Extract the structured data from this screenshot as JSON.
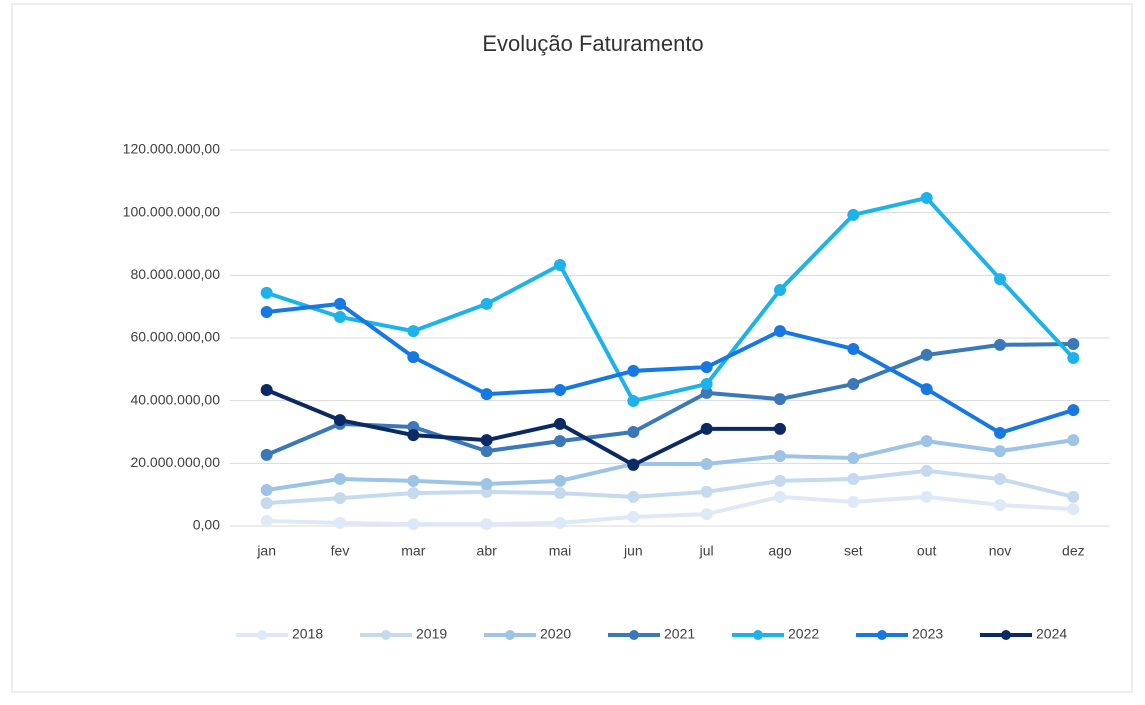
{
  "chart_data": {
    "type": "line",
    "title": "Evolução Faturamento",
    "categories": [
      "jan",
      "fev",
      "mar",
      "abr",
      "mai",
      "jun",
      "jul",
      "ago",
      "set",
      "out",
      "nov",
      "dez"
    ],
    "series": [
      {
        "name": "2018",
        "color": "#dde9f7",
        "values": [
          1600000,
          1000000,
          600000,
          600000,
          1000000,
          2900000,
          3800000,
          9300000,
          7700000,
          9300000,
          6700000,
          5400000
        ]
      },
      {
        "name": "2019",
        "color": "#c5d9ef",
        "values": [
          7300000,
          8900000,
          10500000,
          10900000,
          10500000,
          9300000,
          10900000,
          14400000,
          15000000,
          17600000,
          15000000,
          9300000
        ]
      },
      {
        "name": "2020",
        "color": "#9dc3e6",
        "values": [
          11500000,
          15000000,
          14400000,
          13400000,
          14400000,
          19800000,
          19800000,
          22300000,
          21700000,
          27100000,
          23900000,
          27400000
        ]
      },
      {
        "name": "2021",
        "color": "#3a78b8",
        "values": [
          22700000,
          32600000,
          31600000,
          23900000,
          27100000,
          30000000,
          42500000,
          40500000,
          45300000,
          54600000,
          57800000,
          58100000
        ]
      },
      {
        "name": "2022",
        "color": "#1db2ea",
        "values": [
          74400000,
          66700000,
          62200000,
          70900000,
          83300000,
          39900000,
          45300000,
          75300000,
          99300000,
          104700000,
          78800000,
          53600000
        ]
      },
      {
        "name": "2023",
        "color": "#1678e0",
        "values": [
          68300000,
          70900000,
          53900000,
          42100000,
          43400000,
          49500000,
          50700000,
          62200000,
          56500000,
          43700000,
          29700000,
          37000000
        ]
      },
      {
        "name": "2024",
        "color": "#0b2a63",
        "values": [
          43400000,
          33800000,
          29000000,
          27400000,
          32600000,
          19500000,
          31000000,
          31000000,
          null,
          null,
          null,
          null
        ]
      }
    ],
    "ylim": [
      0,
      120000000
    ],
    "yticks": [
      {
        "value": 0,
        "label": "0,00"
      },
      {
        "value": 20000000,
        "label": "20.000.000,00"
      },
      {
        "value": 40000000,
        "label": "40.000.000,00"
      },
      {
        "value": 60000000,
        "label": "60.000.000,00"
      },
      {
        "value": 80000000,
        "label": "80.000.000,00"
      },
      {
        "value": 100000000,
        "label": "100.000.000,00"
      },
      {
        "value": 120000000,
        "label": "120.000.000,00"
      }
    ],
    "grid": true,
    "legend": "bottom"
  }
}
